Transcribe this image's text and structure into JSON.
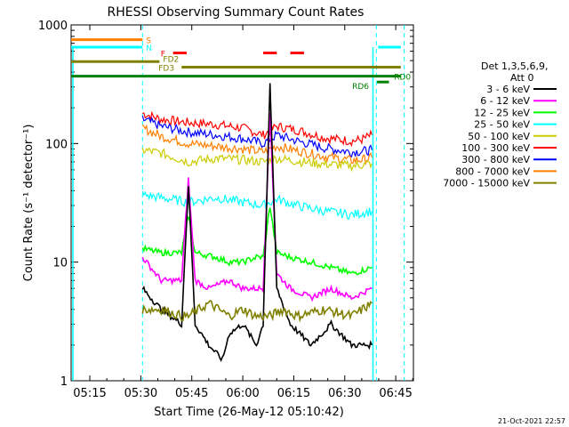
{
  "chart_data": {
    "type": "line",
    "title": "RHESSI Observing Summary Count Rates",
    "xlabel": "Start Time (26-May-12 05:10:42)",
    "ylabel": "Count Rate (s⁻¹ detector⁻¹)",
    "yscale": "log",
    "ylim": [
      1,
      1000
    ],
    "xlim_minutes": [
      5.3,
      59.7
    ],
    "x_start": "05:10:42",
    "x_ticks": [
      {
        "minute": 15,
        "label": "05:15"
      },
      {
        "minute": 30,
        "label": "05:30"
      },
      {
        "minute": 45,
        "label": "05:45"
      },
      {
        "minute": 60,
        "label": "06:00"
      },
      {
        "minute": 75,
        "label": "06:15"
      },
      {
        "minute": 90,
        "label": "06:30"
      },
      {
        "minute": 105,
        "label": "06:45"
      }
    ],
    "y_ticks": [
      {
        "value": 1,
        "label": "1"
      },
      {
        "value": 10,
        "label": "10"
      },
      {
        "value": 100,
        "label": "100"
      },
      {
        "value": 1000,
        "label": "1000"
      }
    ],
    "legend": {
      "placement": "right",
      "header": [
        "Det 1,3,5,6,9,",
        "Att 0"
      ],
      "entries": [
        {
          "label": "3 - 6 keV",
          "color": "#000000"
        },
        {
          "label": "6 - 12 keV",
          "color": "#ff00ff"
        },
        {
          "label": "12 - 25 keV",
          "color": "#00ff00"
        },
        {
          "label": "25 - 50 keV",
          "color": "#00ffff"
        },
        {
          "label": "50 - 100 keV",
          "color": "#cccc00"
        },
        {
          "label": "100 - 300 keV",
          "color": "#ff0000"
        },
        {
          "label": "300 - 800 keV",
          "color": "#0000ff"
        },
        {
          "label": "800 - 7000 keV",
          "color": "#ff8000"
        },
        {
          "label": "7000 - 15000 keV",
          "color": "#808000"
        }
      ]
    },
    "time_markers_dashed": [
      30.5,
      99.3
    ],
    "series": [
      {
        "color": "#ff0000",
        "points": [
          [
            30.5,
            180
          ],
          [
            36,
            160
          ],
          [
            44,
            150
          ],
          [
            52,
            145
          ],
          [
            60,
            135
          ],
          [
            66,
            118
          ],
          [
            70,
            140
          ],
          [
            76,
            130
          ],
          [
            84,
            112
          ],
          [
            92,
            105
          ],
          [
            95,
            108
          ],
          [
            98,
            118
          ]
        ]
      },
      {
        "color": "#0000ff",
        "points": [
          [
            30.5,
            160
          ],
          [
            36,
            140
          ],
          [
            44,
            125
          ],
          [
            52,
            118
          ],
          [
            60,
            110
          ],
          [
            66,
            100
          ],
          [
            70,
            118
          ],
          [
            76,
            105
          ],
          [
            84,
            92
          ],
          [
            92,
            85
          ],
          [
            95,
            86
          ],
          [
            98,
            88
          ]
        ]
      },
      {
        "color": "#ff8000",
        "points": [
          [
            30.5,
            135
          ],
          [
            36,
            115
          ],
          [
            44,
            100
          ],
          [
            52,
            95
          ],
          [
            60,
            90
          ],
          [
            66,
            85
          ],
          [
            70,
            95
          ],
          [
            76,
            87
          ],
          [
            84,
            78
          ],
          [
            92,
            72
          ],
          [
            95,
            73
          ],
          [
            98,
            76
          ]
        ]
      },
      {
        "color": "#cccc00",
        "points": [
          [
            30.5,
            88
          ],
          [
            36,
            83
          ],
          [
            44,
            70
          ],
          [
            52,
            75
          ],
          [
            60,
            73
          ],
          [
            66,
            70
          ],
          [
            70,
            75
          ],
          [
            76,
            71
          ],
          [
            84,
            67
          ],
          [
            92,
            65
          ],
          [
            95,
            66
          ],
          [
            98,
            68
          ]
        ]
      },
      {
        "color": "#00ffff",
        "points": [
          [
            30.5,
            37
          ],
          [
            36,
            35
          ],
          [
            44,
            32
          ],
          [
            52,
            35
          ],
          [
            60,
            32
          ],
          [
            66,
            30
          ],
          [
            70,
            34
          ],
          [
            76,
            30
          ],
          [
            84,
            27
          ],
          [
            92,
            25
          ],
          [
            95,
            26
          ],
          [
            98,
            27
          ]
        ]
      },
      {
        "color": "#00ff00",
        "points": [
          [
            30.5,
            13
          ],
          [
            36,
            12
          ],
          [
            42,
            12
          ],
          [
            44,
            25
          ],
          [
            46,
            12
          ],
          [
            52,
            11
          ],
          [
            56,
            10
          ],
          [
            60,
            10
          ],
          [
            64,
            11
          ],
          [
            66,
            11
          ],
          [
            68,
            30
          ],
          [
            70,
            12
          ],
          [
            74,
            11
          ],
          [
            80,
            10
          ],
          [
            86,
            9
          ],
          [
            92,
            8
          ],
          [
            98,
            9
          ]
        ]
      },
      {
        "color": "#ff00ff",
        "points": [
          [
            30.5,
            11
          ],
          [
            36,
            7
          ],
          [
            42,
            7
          ],
          [
            44,
            50
          ],
          [
            46,
            7
          ],
          [
            50,
            6
          ],
          [
            56,
            7
          ],
          [
            60,
            6
          ],
          [
            64,
            6
          ],
          [
            66,
            6
          ],
          [
            68,
            180
          ],
          [
            70,
            8
          ],
          [
            74,
            6
          ],
          [
            80,
            5
          ],
          [
            86,
            6
          ],
          [
            92,
            5
          ],
          [
            98,
            6
          ]
        ]
      },
      {
        "color": "#000000",
        "points": [
          [
            30.5,
            6
          ],
          [
            36,
            4
          ],
          [
            42,
            3
          ],
          [
            44,
            45
          ],
          [
            46,
            3
          ],
          [
            50,
            2
          ],
          [
            54,
            1.5
          ],
          [
            56,
            2.5
          ],
          [
            60,
            3
          ],
          [
            64,
            2
          ],
          [
            66,
            3
          ],
          [
            68,
            320
          ],
          [
            70,
            6
          ],
          [
            74,
            3
          ],
          [
            80,
            2
          ],
          [
            86,
            3
          ],
          [
            92,
            2
          ],
          [
            98,
            2
          ]
        ]
      },
      {
        "color": "#808000",
        "points": [
          [
            30.5,
            4
          ],
          [
            36,
            4
          ],
          [
            42,
            3.5
          ],
          [
            44,
            3.5
          ],
          [
            50,
            4.5
          ],
          [
            56,
            3.5
          ],
          [
            60,
            4
          ],
          [
            64,
            3.5
          ],
          [
            68,
            3.5
          ],
          [
            72,
            4
          ],
          [
            76,
            3.5
          ],
          [
            84,
            4
          ],
          [
            92,
            3.5
          ],
          [
            98,
            4.5
          ]
        ]
      }
    ],
    "flag_bars": [
      {
        "label": "S",
        "color": "#ff8000",
        "value": 750,
        "segments": [
          [
            5.3,
            30.5
          ]
        ]
      },
      {
        "label": "N",
        "color": "#00ffff",
        "value": 650,
        "segments": [
          [
            5.3,
            30.5
          ],
          [
            99.8,
            106.5
          ]
        ]
      },
      {
        "label": "F",
        "color": "#ff0000",
        "value": 580,
        "segments": [
          [
            39.5,
            43.5
          ],
          [
            66,
            70
          ],
          [
            74,
            78
          ]
        ]
      },
      {
        "label": "FD2",
        "color": "#808000",
        "value": 490,
        "segments": [
          [
            5.3,
            35.5
          ]
        ]
      },
      {
        "label": "FD3",
        "color": "#808000",
        "value": 440,
        "segments": [
          [
            42,
            106.5
          ]
        ]
      },
      {
        "label": "RD0",
        "color": "#008000",
        "value": 370,
        "segments": [
          [
            5.3,
            106.5
          ]
        ]
      },
      {
        "label": "RD6",
        "color": "#008000",
        "value": 330,
        "segments": [
          [
            99.5,
            103
          ]
        ]
      }
    ]
  },
  "timestamp": "21-Oct-2021 22:57"
}
